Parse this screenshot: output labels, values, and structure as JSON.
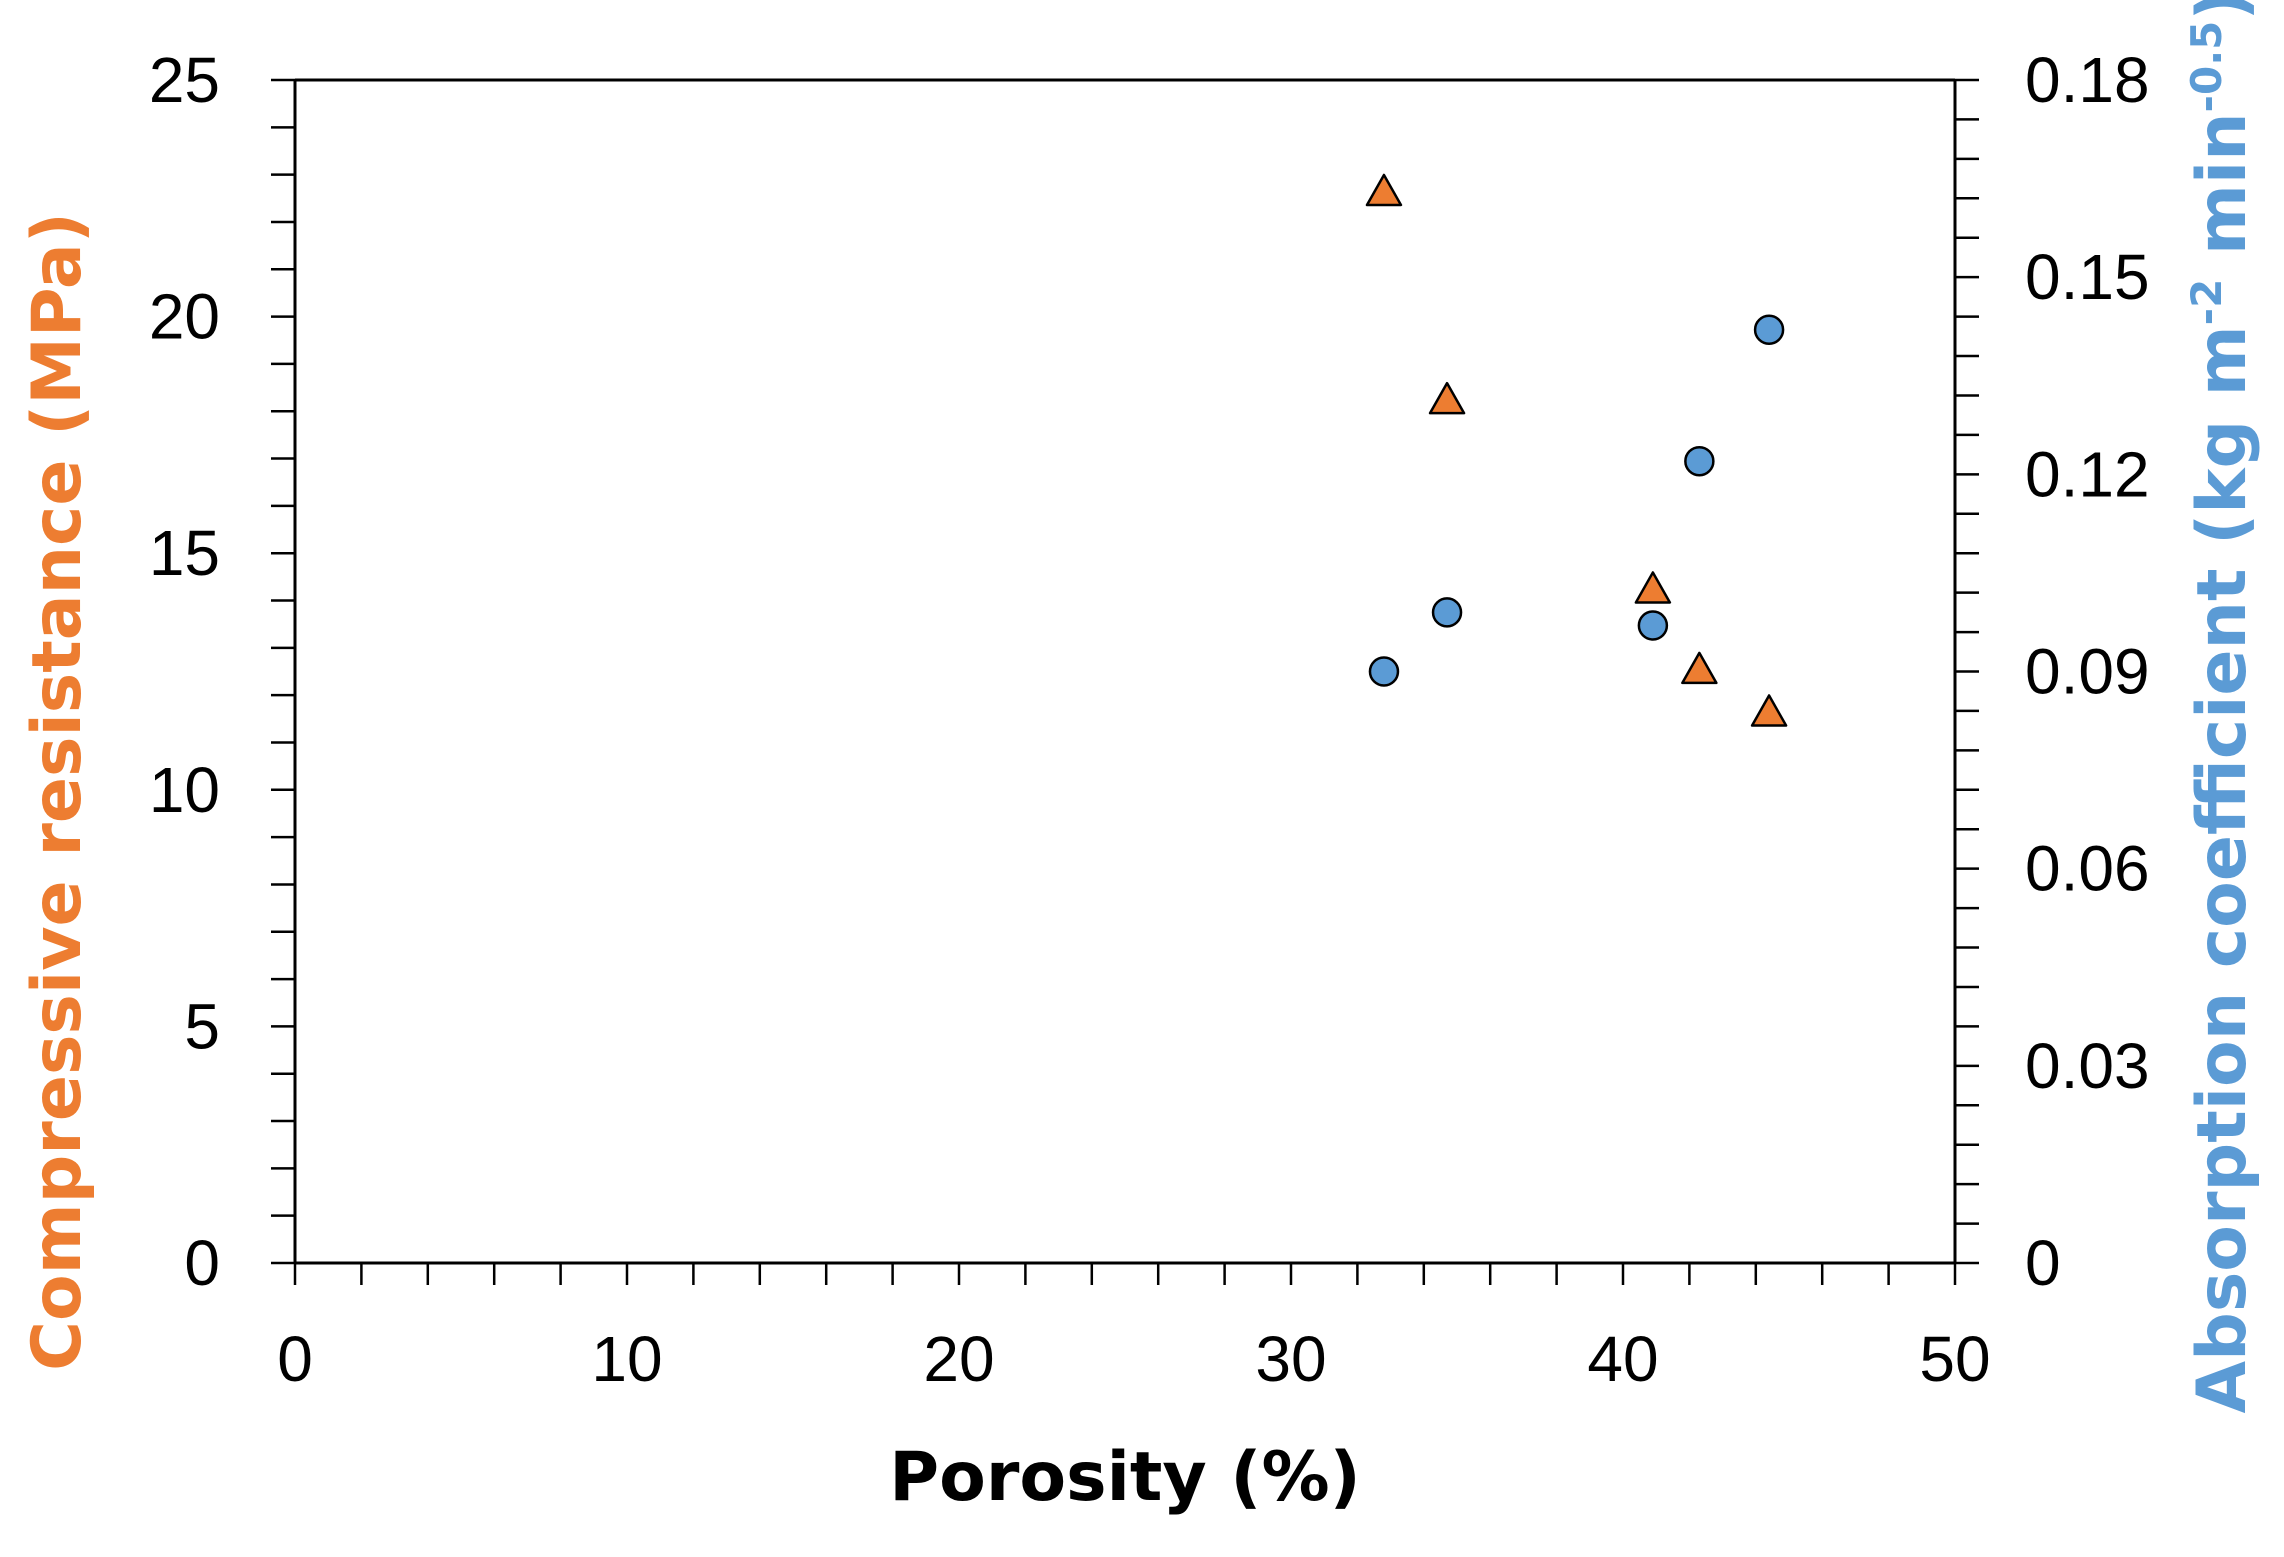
{
  "chart_data": {
    "type": "scatter",
    "title": "",
    "xlabel": "Porosity (%)",
    "ylabel_left": "Compressive resistance (MPa)",
    "ylabel_right": {
      "base": "Absorption coefficient (kg m",
      "exp1": "-2",
      "mid": " min",
      "exp2": "-0.5",
      "end": ")"
    },
    "xlim": [
      0,
      50
    ],
    "ylim_left": [
      0,
      25
    ],
    "ylim_right": [
      0,
      0.18
    ],
    "x_ticks": [
      "0",
      "10",
      "20",
      "30",
      "40",
      "50"
    ],
    "y_left_ticks": [
      "0",
      "5",
      "10",
      "15",
      "20",
      "25"
    ],
    "y_right_ticks": [
      "0",
      "0.03",
      "0.06",
      "0.09",
      "0.12",
      "0.15",
      "0.18"
    ],
    "grid": false,
    "series": [
      {
        "name": "Compressive resistance",
        "axis": "left",
        "marker": "triangle",
        "color": "#ED7D31",
        "points": [
          {
            "x": 32.8,
            "y": 22.6
          },
          {
            "x": 34.7,
            "y": 18.2
          },
          {
            "x": 40.9,
            "y": 14.2
          },
          {
            "x": 42.3,
            "y": 12.5
          },
          {
            "x": 44.4,
            "y": 11.6
          }
        ]
      },
      {
        "name": "Absorption coefficient",
        "axis": "right",
        "marker": "circle",
        "color": "#5B9BD5",
        "points": [
          {
            "x": 32.8,
            "y": 0.09
          },
          {
            "x": 34.7,
            "y": 0.099
          },
          {
            "x": 40.9,
            "y": 0.097
          },
          {
            "x": 42.3,
            "y": 0.122
          },
          {
            "x": 44.4,
            "y": 0.142
          }
        ]
      }
    ]
  }
}
